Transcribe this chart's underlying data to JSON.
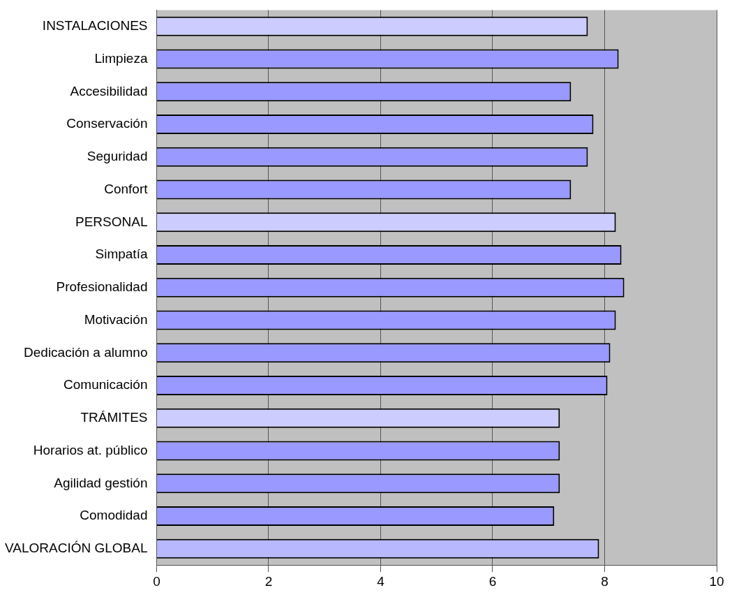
{
  "chart_data": {
    "type": "bar",
    "orientation": "horizontal",
    "categories": [
      "INSTALACIONES",
      "Limpieza",
      "Accesibilidad",
      "Conservación",
      "Seguridad",
      "Confort",
      "PERSONAL",
      "Simpatía",
      "Profesionalidad",
      "Motivación",
      "Dedicación a alumno",
      "Comunicación",
      "TRÁMITES",
      "Horarios at. público",
      "Agilidad gestión",
      "Comodidad",
      "VALORACIÓN GLOBAL"
    ],
    "values": [
      7.7,
      8.25,
      7.4,
      7.8,
      7.7,
      7.4,
      8.2,
      8.3,
      8.35,
      8.2,
      8.1,
      8.05,
      7.2,
      7.2,
      7.2,
      7.1,
      7.9
    ],
    "colors": [
      "#ccccff",
      "#9999ff",
      "#9999ff",
      "#9999ff",
      "#9999ff",
      "#9999ff",
      "#ccccff",
      "#9999ff",
      "#9999ff",
      "#9999ff",
      "#9999ff",
      "#9999ff",
      "#ccccff",
      "#9999ff",
      "#9999ff",
      "#9999ff",
      "#b8b8ff"
    ],
    "xlim": [
      0,
      10
    ],
    "xticks": [
      0,
      2,
      4,
      6,
      8,
      10
    ],
    "grid": "x",
    "legend": false
  }
}
